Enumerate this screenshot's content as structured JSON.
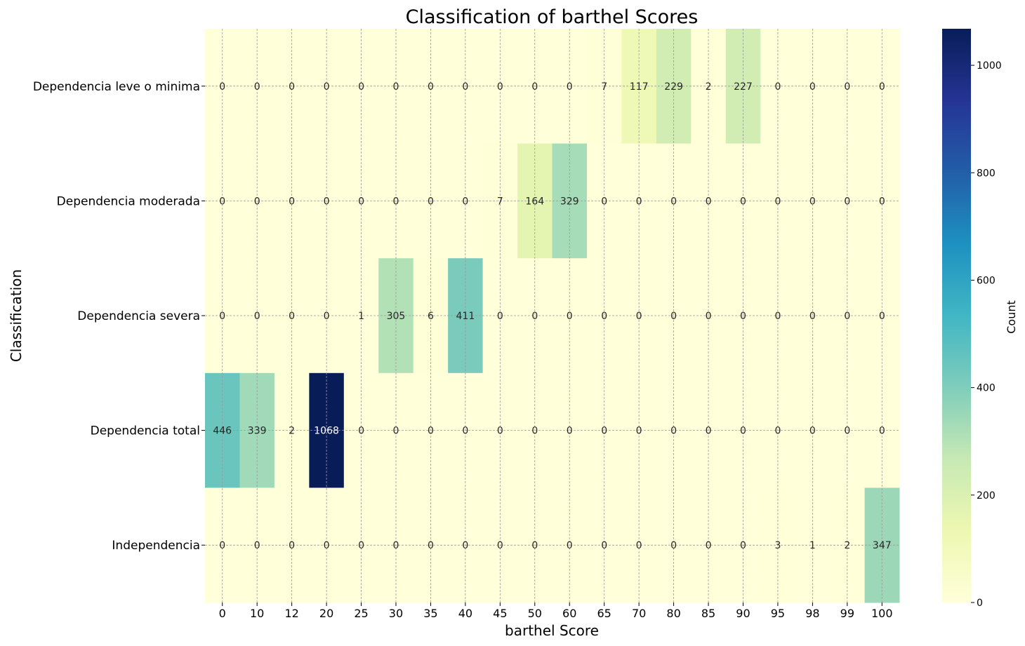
{
  "chart_data": {
    "type": "heatmap",
    "title": "Classification of barthel Scores",
    "xlabel": "barthel Score",
    "ylabel": "Classification",
    "x_categories": [
      "0",
      "10",
      "12",
      "20",
      "25",
      "30",
      "35",
      "40",
      "45",
      "50",
      "60",
      "65",
      "70",
      "80",
      "85",
      "90",
      "95",
      "98",
      "99",
      "100"
    ],
    "y_categories": [
      "Dependencia leve o minima",
      "Dependencia moderada",
      "Dependencia severa",
      "Dependencia total",
      "Independencia"
    ],
    "values": [
      [
        0,
        0,
        0,
        0,
        0,
        0,
        0,
        0,
        0,
        0,
        0,
        7,
        117,
        229,
        2,
        227,
        0,
        0,
        0,
        0
      ],
      [
        0,
        0,
        0,
        0,
        0,
        0,
        0,
        0,
        7,
        164,
        329,
        0,
        0,
        0,
        0,
        0,
        0,
        0,
        0,
        0
      ],
      [
        0,
        0,
        0,
        0,
        1,
        305,
        6,
        411,
        0,
        0,
        0,
        0,
        0,
        0,
        0,
        0,
        0,
        0,
        0,
        0
      ],
      [
        446,
        339,
        2,
        1068,
        0,
        0,
        0,
        0,
        0,
        0,
        0,
        0,
        0,
        0,
        0,
        0,
        0,
        0,
        0,
        0
      ],
      [
        0,
        0,
        0,
        0,
        0,
        0,
        0,
        0,
        0,
        0,
        0,
        0,
        0,
        0,
        0,
        0,
        3,
        1,
        2,
        347
      ]
    ],
    "colorbar": {
      "label": "Count",
      "range": [
        0,
        1068
      ],
      "ticks": [
        0,
        200,
        400,
        600,
        800,
        1000
      ],
      "colormap": "YlGnBu"
    },
    "grid": true,
    "annotations": true
  }
}
